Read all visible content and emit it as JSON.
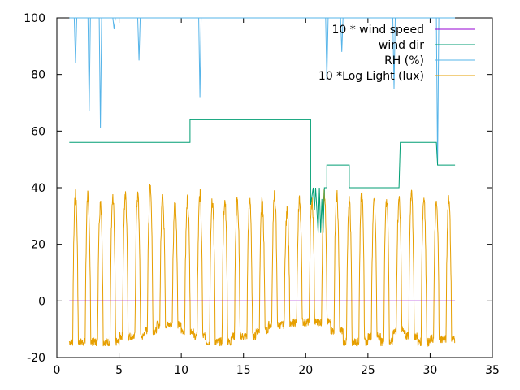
{
  "chart_data": {
    "type": "line",
    "title": "",
    "xlabel": "",
    "ylabel": "",
    "xlim": [
      0,
      35
    ],
    "ylim": [
      -20,
      100
    ],
    "xticks": [
      0,
      5,
      10,
      15,
      20,
      25,
      30,
      35
    ],
    "yticks": [
      -20,
      0,
      20,
      40,
      60,
      80,
      100
    ],
    "grid": false,
    "legend_placement": "top-right",
    "series": [
      {
        "name": "10 * wind speed",
        "color": "#9400d3",
        "points": [
          [
            1,
            0
          ],
          [
            32,
            0
          ]
        ]
      },
      {
        "name": "wind dir",
        "color": "#009e73",
        "points": [
          [
            1,
            56
          ],
          [
            10.7,
            56
          ],
          [
            10.7,
            64
          ],
          [
            20.4,
            64
          ],
          [
            20.4,
            34
          ],
          [
            20.6,
            40
          ],
          [
            20.7,
            32
          ],
          [
            20.8,
            40
          ],
          [
            21.0,
            24
          ],
          [
            21.1,
            40
          ],
          [
            21.2,
            24
          ],
          [
            21.3,
            36
          ],
          [
            21.4,
            24
          ],
          [
            21.5,
            40
          ],
          [
            21.7,
            40
          ],
          [
            21.7,
            48
          ],
          [
            23.5,
            48
          ],
          [
            23.5,
            40
          ],
          [
            27.5,
            40
          ],
          [
            27.6,
            56
          ],
          [
            30.5,
            56
          ],
          [
            30.6,
            48
          ],
          [
            32,
            48
          ]
        ]
      },
      {
        "name": "RH (%)",
        "color": "#56b4e9",
        "points": [
          [
            1.4,
            100
          ],
          [
            1.5,
            84
          ],
          [
            1.6,
            100
          ],
          [
            2.5,
            100
          ],
          [
            2.6,
            67
          ],
          [
            2.7,
            100
          ],
          [
            3.4,
            100
          ],
          [
            3.5,
            61
          ],
          [
            3.6,
            100
          ],
          [
            4.5,
            100
          ],
          [
            4.6,
            96
          ],
          [
            4.7,
            100
          ],
          [
            6.5,
            100
          ],
          [
            6.6,
            85
          ],
          [
            6.7,
            100
          ],
          [
            11.4,
            100
          ],
          [
            11.5,
            72
          ],
          [
            11.6,
            100
          ],
          [
            21.6,
            100
          ],
          [
            21.7,
            78
          ],
          [
            21.8,
            100
          ],
          [
            22.8,
            100
          ],
          [
            22.9,
            88
          ],
          [
            23.0,
            100
          ],
          [
            27.0,
            100
          ],
          [
            27.1,
            75
          ],
          [
            27.2,
            100
          ],
          [
            30.5,
            100
          ],
          [
            30.6,
            48
          ],
          [
            30.7,
            100
          ]
        ]
      },
      {
        "name": "10 *Log Light (lux)",
        "color": "#e69f00",
        "daily_peaks": [
          40,
          40,
          36,
          40,
          40,
          40,
          42,
          38,
          36,
          38,
          40,
          38,
          38,
          38,
          38,
          38,
          40,
          34,
          38,
          38,
          40,
          40,
          38,
          40,
          38,
          38,
          38,
          40,
          38,
          38,
          38
        ],
        "daily_min": [
          -16,
          -16,
          -16,
          -16,
          -14,
          -14,
          -12,
          -10,
          -10,
          -12,
          -14,
          -16,
          -16,
          -14,
          -14,
          -12,
          -10,
          -10,
          -9,
          -9,
          -9,
          -12,
          -16,
          -16,
          -14,
          -16,
          -12,
          -14,
          -16,
          -15,
          -15
        ]
      }
    ]
  }
}
